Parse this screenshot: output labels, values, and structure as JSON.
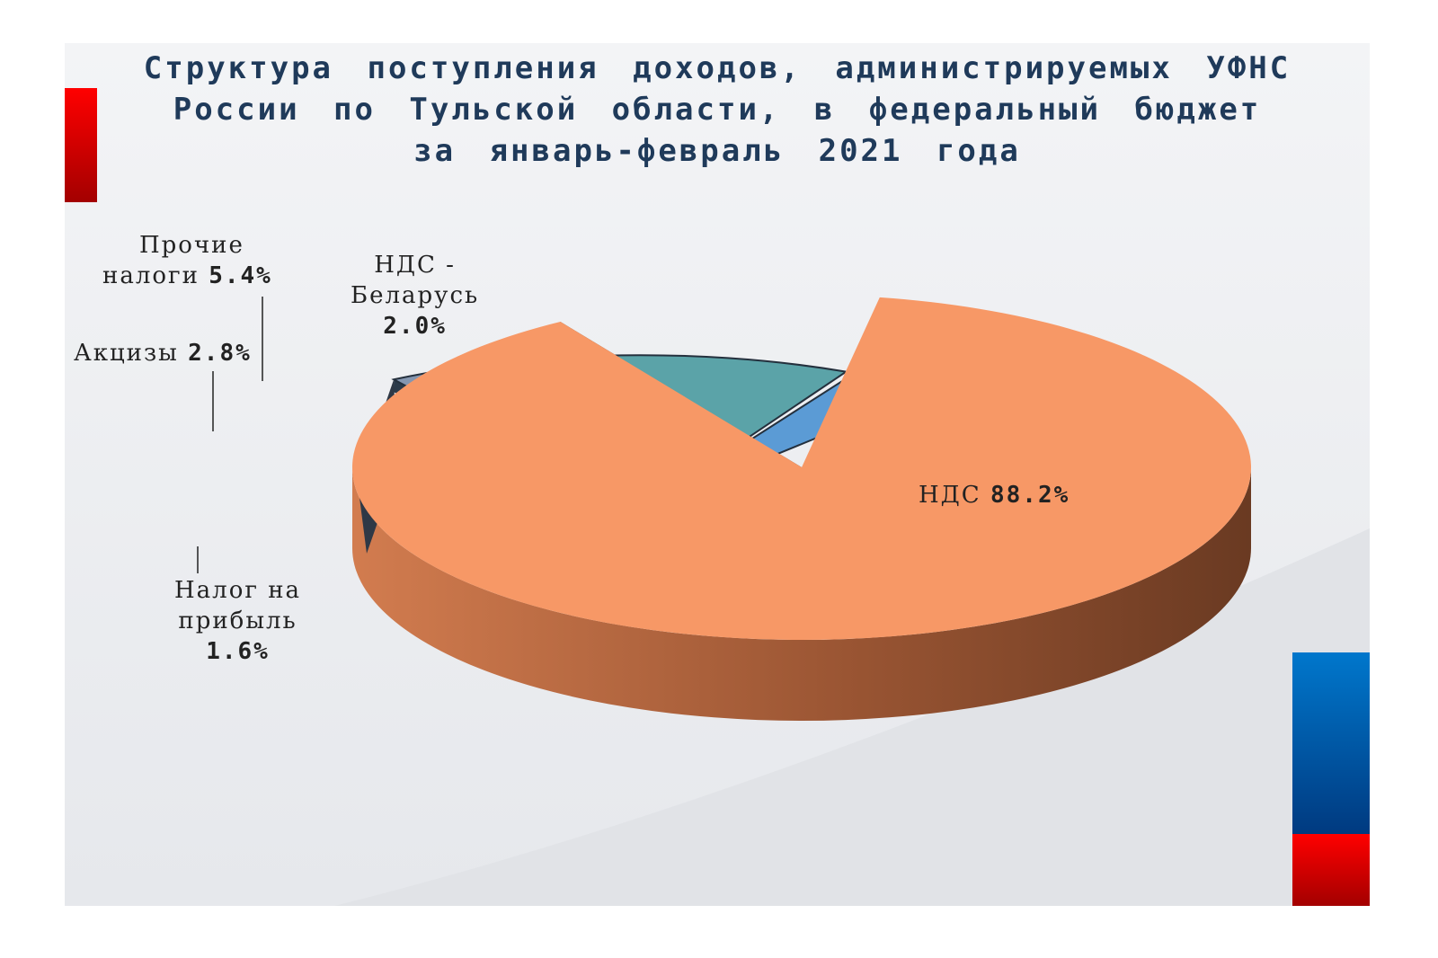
{
  "title_lines": [
    "Структура поступления доходов, администрируемых УФНС",
    "России по Тульской области, в федеральный бюджет",
    "за январь-февраль 2021 года"
  ],
  "chart_data": {
    "type": "pie",
    "title": "Структура поступления доходов, администрируемых УФНС России по Тульской области, в федеральный бюджет за январь-февраль 2021 года",
    "slices": [
      {
        "name": "НДС",
        "label_lines": [
          "НДС"
        ],
        "value": 88.2,
        "value_label": "88.2%",
        "color": "#f79866",
        "exploded": false
      },
      {
        "name": "Налог на прибыль",
        "label_lines": [
          "Налог на",
          "прибыль"
        ],
        "value": 1.6,
        "value_label": "1.6%",
        "color": "#8496b0",
        "exploded": true
      },
      {
        "name": "Акцизы",
        "label_lines": [
          "Акцизы"
        ],
        "value": 2.8,
        "value_label": "2.8%",
        "color": "#f5a19d",
        "exploded": true
      },
      {
        "name": "Прочие налоги",
        "label_lines": [
          "Прочие",
          "налоги"
        ],
        "value": 5.4,
        "value_label": "5.4%",
        "color": "#5ba3a8",
        "exploded": true
      },
      {
        "name": "НДС - Беларусь",
        "label_lines": [
          "НДС -",
          "Беларусь"
        ],
        "value": 2.0,
        "value_label": "2.0%",
        "color": "#5b9bd5",
        "exploded": true
      }
    ],
    "legend": "none",
    "colors": {
      "title": "#1f3a5a",
      "accent_red": "#e00000",
      "accent_blue": "#0070c0"
    }
  }
}
